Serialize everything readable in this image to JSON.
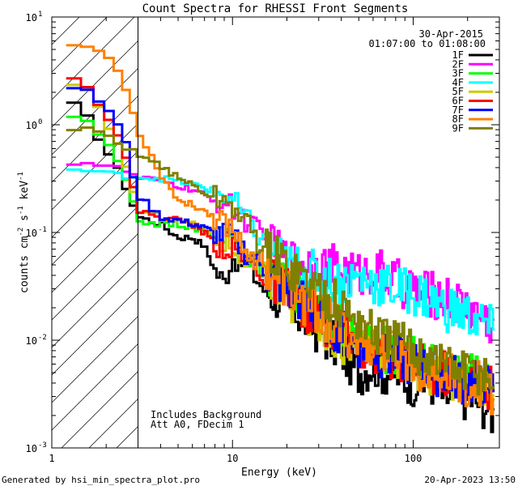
{
  "chart_data": {
    "type": "line",
    "title": "Count Spectra for RHESSI Front Segments",
    "xlabel": "Energy (keV)",
    "ylabel_parts": {
      "base": "counts cm",
      "exp1": "-2",
      "mid": " s",
      "exp2": "-1",
      "end": " keV",
      "exp3": "-1"
    },
    "xscale": "log",
    "yscale": "log",
    "xlim": [
      1,
      300
    ],
    "ylim": [
      0.001,
      10
    ],
    "x_ticks": [
      {
        "value": 1,
        "label": "1"
      },
      {
        "value": 10,
        "label": "10"
      },
      {
        "value": 100,
        "label": "100"
      }
    ],
    "y_ticks": [
      {
        "value": 0.001,
        "base": "10",
        "exp": "-3"
      },
      {
        "value": 0.01,
        "base": "10",
        "exp": "-2"
      },
      {
        "value": 0.1,
        "base": "10",
        "exp": "-1"
      },
      {
        "value": 1,
        "base": "10",
        "exp": "0"
      },
      {
        "value": 10,
        "base": "10",
        "exp": "1"
      }
    ],
    "shaded_region": {
      "from": 1,
      "to": 3,
      "style": "diagonal-hatch"
    },
    "date": "30-Apr-2015",
    "time_range": "01:07:00 to 01:08:00",
    "annotations": [
      "Includes Background",
      "Att A0, FDecim 1"
    ],
    "legend_position": "top-right",
    "footer_left": "Generated by hsi_min_spectra_plot.pro",
    "footer_right": "20-Apr-2023 13:50",
    "series": [
      {
        "name": "1F",
        "color": "#000000",
        "anchors": [
          [
            1.2,
            1.7
          ],
          [
            1.5,
            1.3
          ],
          [
            2,
            0.6
          ],
          [
            2.5,
            0.3
          ],
          [
            3,
            0.14
          ],
          [
            4,
            0.12
          ],
          [
            5,
            0.09
          ],
          [
            6,
            0.09
          ],
          [
            7,
            0.075
          ],
          [
            8,
            0.045
          ],
          [
            9,
            0.035
          ],
          [
            10,
            0.06
          ],
          [
            12,
            0.05
          ],
          [
            15,
            0.03
          ],
          [
            20,
            0.022
          ],
          [
            30,
            0.012
          ],
          [
            40,
            0.008
          ],
          [
            50,
            0.005
          ],
          [
            60,
            0.006
          ],
          [
            70,
            0.005
          ],
          [
            80,
            0.005
          ],
          [
            100,
            0.004
          ],
          [
            130,
            0.004
          ],
          [
            150,
            0.003
          ],
          [
            200,
            0.003
          ],
          [
            250,
            0.0025
          ],
          [
            280,
            0.002
          ]
        ]
      },
      {
        "name": "2F",
        "color": "#ff00ff",
        "anchors": [
          [
            1.2,
            0.45
          ],
          [
            1.5,
            0.45
          ],
          [
            2,
            0.42
          ],
          [
            2.5,
            0.38
          ],
          [
            3,
            0.32
          ],
          [
            4,
            0.3
          ],
          [
            5,
            0.27
          ],
          [
            6,
            0.25
          ],
          [
            7,
            0.22
          ],
          [
            8,
            0.2
          ],
          [
            10,
            0.17
          ],
          [
            12,
            0.13
          ],
          [
            15,
            0.085
          ],
          [
            20,
            0.055
          ],
          [
            25,
            0.052
          ],
          [
            30,
            0.05
          ],
          [
            40,
            0.045
          ],
          [
            50,
            0.04
          ],
          [
            60,
            0.045
          ],
          [
            70,
            0.04
          ],
          [
            80,
            0.035
          ],
          [
            100,
            0.03
          ],
          [
            120,
            0.027
          ],
          [
            150,
            0.025
          ],
          [
            200,
            0.02
          ],
          [
            250,
            0.016
          ],
          [
            280,
            0.014
          ]
        ]
      },
      {
        "name": "3F",
        "color": "#00ff00",
        "anchors": [
          [
            1.2,
            1.3
          ],
          [
            1.5,
            1.1
          ],
          [
            2,
            0.7
          ],
          [
            2.5,
            0.35
          ],
          [
            3,
            0.13
          ],
          [
            4,
            0.12
          ],
          [
            5,
            0.12
          ],
          [
            6,
            0.11
          ],
          [
            7,
            0.1
          ],
          [
            8,
            0.095
          ],
          [
            10,
            0.08
          ],
          [
            12,
            0.06
          ],
          [
            15,
            0.045
          ],
          [
            20,
            0.035
          ],
          [
            30,
            0.02
          ],
          [
            40,
            0.014
          ],
          [
            50,
            0.01
          ],
          [
            60,
            0.009
          ],
          [
            70,
            0.008
          ],
          [
            80,
            0.008
          ],
          [
            100,
            0.007
          ],
          [
            130,
            0.006
          ],
          [
            150,
            0.005
          ],
          [
            200,
            0.005
          ],
          [
            250,
            0.004
          ],
          [
            280,
            0.0035
          ]
        ]
      },
      {
        "name": "4F",
        "color": "#00ffff",
        "anchors": [
          [
            1.2,
            0.38
          ],
          [
            1.5,
            0.38
          ],
          [
            2,
            0.35
          ],
          [
            2.5,
            0.34
          ],
          [
            3,
            0.33
          ],
          [
            4,
            0.32
          ],
          [
            5,
            0.3
          ],
          [
            6,
            0.28
          ],
          [
            7,
            0.26
          ],
          [
            8,
            0.24
          ],
          [
            10,
            0.2
          ],
          [
            12,
            0.13
          ],
          [
            15,
            0.08
          ],
          [
            20,
            0.05
          ],
          [
            25,
            0.045
          ],
          [
            30,
            0.04
          ],
          [
            40,
            0.035
          ],
          [
            50,
            0.038
          ],
          [
            60,
            0.035
          ],
          [
            70,
            0.032
          ],
          [
            80,
            0.03
          ],
          [
            100,
            0.028
          ],
          [
            120,
            0.025
          ],
          [
            150,
            0.02
          ],
          [
            200,
            0.017
          ],
          [
            250,
            0.014
          ],
          [
            280,
            0.012
          ]
        ]
      },
      {
        "name": "5F",
        "color": "#cccc00",
        "anchors": [
          [
            1.2,
            2.3
          ],
          [
            1.5,
            2.2
          ],
          [
            2,
            1.1
          ],
          [
            2.5,
            0.5
          ],
          [
            3,
            0.16
          ],
          [
            4,
            0.14
          ],
          [
            5,
            0.13
          ],
          [
            6,
            0.12
          ],
          [
            7,
            0.11
          ],
          [
            8,
            0.09
          ],
          [
            10,
            0.075
          ],
          [
            12,
            0.055
          ],
          [
            15,
            0.04
          ],
          [
            20,
            0.025
          ],
          [
            30,
            0.015
          ],
          [
            40,
            0.01
          ],
          [
            50,
            0.008
          ],
          [
            60,
            0.008
          ],
          [
            70,
            0.007
          ],
          [
            80,
            0.007
          ],
          [
            100,
            0.006
          ],
          [
            130,
            0.005
          ],
          [
            150,
            0.005
          ],
          [
            200,
            0.004
          ],
          [
            250,
            0.004
          ],
          [
            280,
            0.003
          ]
        ]
      },
      {
        "name": "6F",
        "color": "#ff0000",
        "anchors": [
          [
            1.2,
            3.2
          ],
          [
            1.5,
            2.5
          ],
          [
            2,
            1.3
          ],
          [
            2.5,
            0.6
          ],
          [
            3,
            0.16
          ],
          [
            4,
            0.14
          ],
          [
            5,
            0.13
          ],
          [
            6,
            0.12
          ],
          [
            7,
            0.1
          ],
          [
            8,
            0.08
          ],
          [
            10,
            0.07
          ],
          [
            12,
            0.055
          ],
          [
            15,
            0.04
          ],
          [
            20,
            0.028
          ],
          [
            30,
            0.016
          ],
          [
            40,
            0.011
          ],
          [
            50,
            0.009
          ],
          [
            60,
            0.008
          ],
          [
            70,
            0.007
          ],
          [
            80,
            0.007
          ],
          [
            100,
            0.006
          ],
          [
            130,
            0.005
          ],
          [
            150,
            0.005
          ],
          [
            200,
            0.004
          ],
          [
            250,
            0.004
          ],
          [
            280,
            0.0035
          ]
        ]
      },
      {
        "name": "7F",
        "color": "#0000ff",
        "anchors": [
          [
            1.2,
            2.4
          ],
          [
            1.5,
            2.1
          ],
          [
            2,
            1.5
          ],
          [
            2.5,
            0.8
          ],
          [
            3,
            0.22
          ],
          [
            4,
            0.14
          ],
          [
            5,
            0.13
          ],
          [
            6,
            0.12
          ],
          [
            7,
            0.11
          ],
          [
            8,
            0.1
          ],
          [
            10,
            0.09
          ],
          [
            12,
            0.065
          ],
          [
            15,
            0.045
          ],
          [
            20,
            0.03
          ],
          [
            30,
            0.017
          ],
          [
            40,
            0.012
          ],
          [
            50,
            0.009
          ],
          [
            60,
            0.008
          ],
          [
            70,
            0.007
          ],
          [
            80,
            0.007
          ],
          [
            100,
            0.006
          ],
          [
            130,
            0.005
          ],
          [
            150,
            0.005
          ],
          [
            200,
            0.004
          ],
          [
            250,
            0.004
          ],
          [
            280,
            0.0035
          ]
        ]
      },
      {
        "name": "8F",
        "color": "#ff8000",
        "anchors": [
          [
            1.2,
            5.5
          ],
          [
            1.5,
            5.5
          ],
          [
            2,
            4.5
          ],
          [
            2.5,
            2.6
          ],
          [
            3,
            0.9
          ],
          [
            4,
            0.35
          ],
          [
            5,
            0.2
          ],
          [
            6,
            0.18
          ],
          [
            7,
            0.16
          ],
          [
            8,
            0.14
          ],
          [
            10,
            0.11
          ],
          [
            12,
            0.07
          ],
          [
            15,
            0.05
          ],
          [
            20,
            0.03
          ],
          [
            30,
            0.018
          ],
          [
            40,
            0.012
          ],
          [
            50,
            0.01
          ],
          [
            60,
            0.009
          ],
          [
            70,
            0.008
          ],
          [
            80,
            0.008
          ],
          [
            100,
            0.006
          ],
          [
            130,
            0.005
          ],
          [
            150,
            0.005
          ],
          [
            200,
            0.004
          ],
          [
            250,
            0.004
          ],
          [
            280,
            0.003
          ]
        ]
      },
      {
        "name": "9F",
        "color": "#808000",
        "anchors": [
          [
            1.2,
            0.85
          ],
          [
            1.5,
            0.9
          ],
          [
            2,
            0.8
          ],
          [
            2.5,
            0.6
          ],
          [
            3,
            0.55
          ],
          [
            4,
            0.42
          ],
          [
            5,
            0.32
          ],
          [
            6,
            0.28
          ],
          [
            7,
            0.23
          ],
          [
            8,
            0.21
          ],
          [
            10,
            0.18
          ],
          [
            12,
            0.12
          ],
          [
            15,
            0.07
          ],
          [
            20,
            0.05
          ],
          [
            30,
            0.03
          ],
          [
            40,
            0.02
          ],
          [
            50,
            0.015
          ],
          [
            60,
            0.012
          ],
          [
            70,
            0.01
          ],
          [
            80,
            0.01
          ],
          [
            100,
            0.008
          ],
          [
            130,
            0.007
          ],
          [
            150,
            0.006
          ],
          [
            200,
            0.005
          ],
          [
            250,
            0.005
          ],
          [
            280,
            0.004
          ]
        ]
      }
    ]
  }
}
